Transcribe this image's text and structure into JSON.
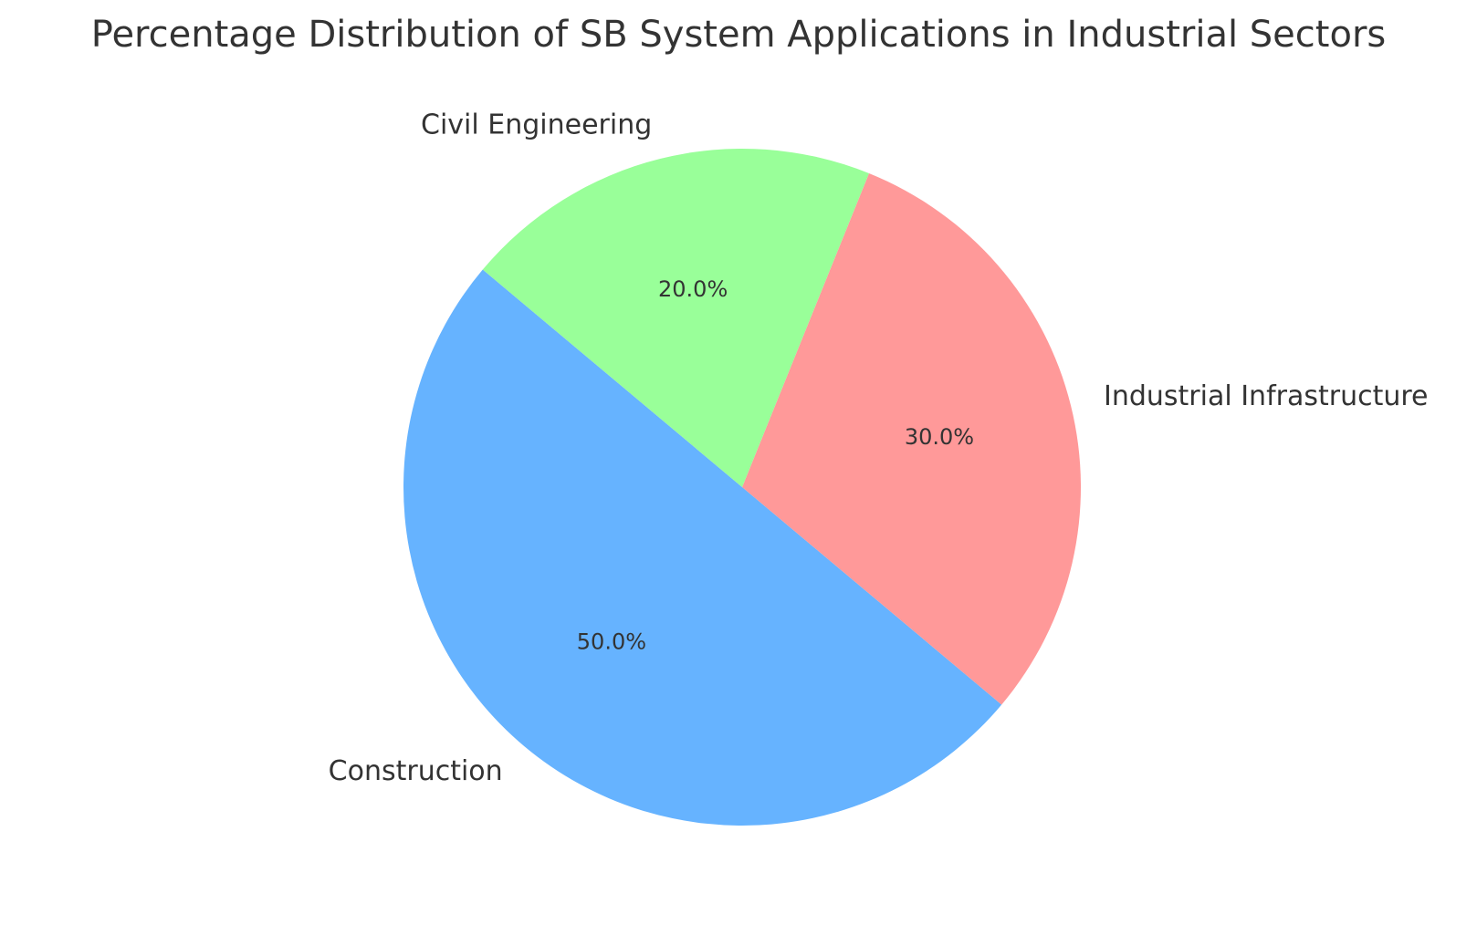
{
  "chart_data": {
    "type": "pie",
    "title": "Percentage Distribution of SB System Applications in Industrial Sectors",
    "categories": [
      "Construction",
      "Industrial Infrastructure",
      "Civil Engineering"
    ],
    "values": [
      50,
      30,
      20
    ],
    "value_labels": [
      "50.0%",
      "30.0%",
      "20.0%"
    ],
    "colors": [
      "#66b3ff",
      "#ff9999",
      "#99ff99"
    ]
  }
}
